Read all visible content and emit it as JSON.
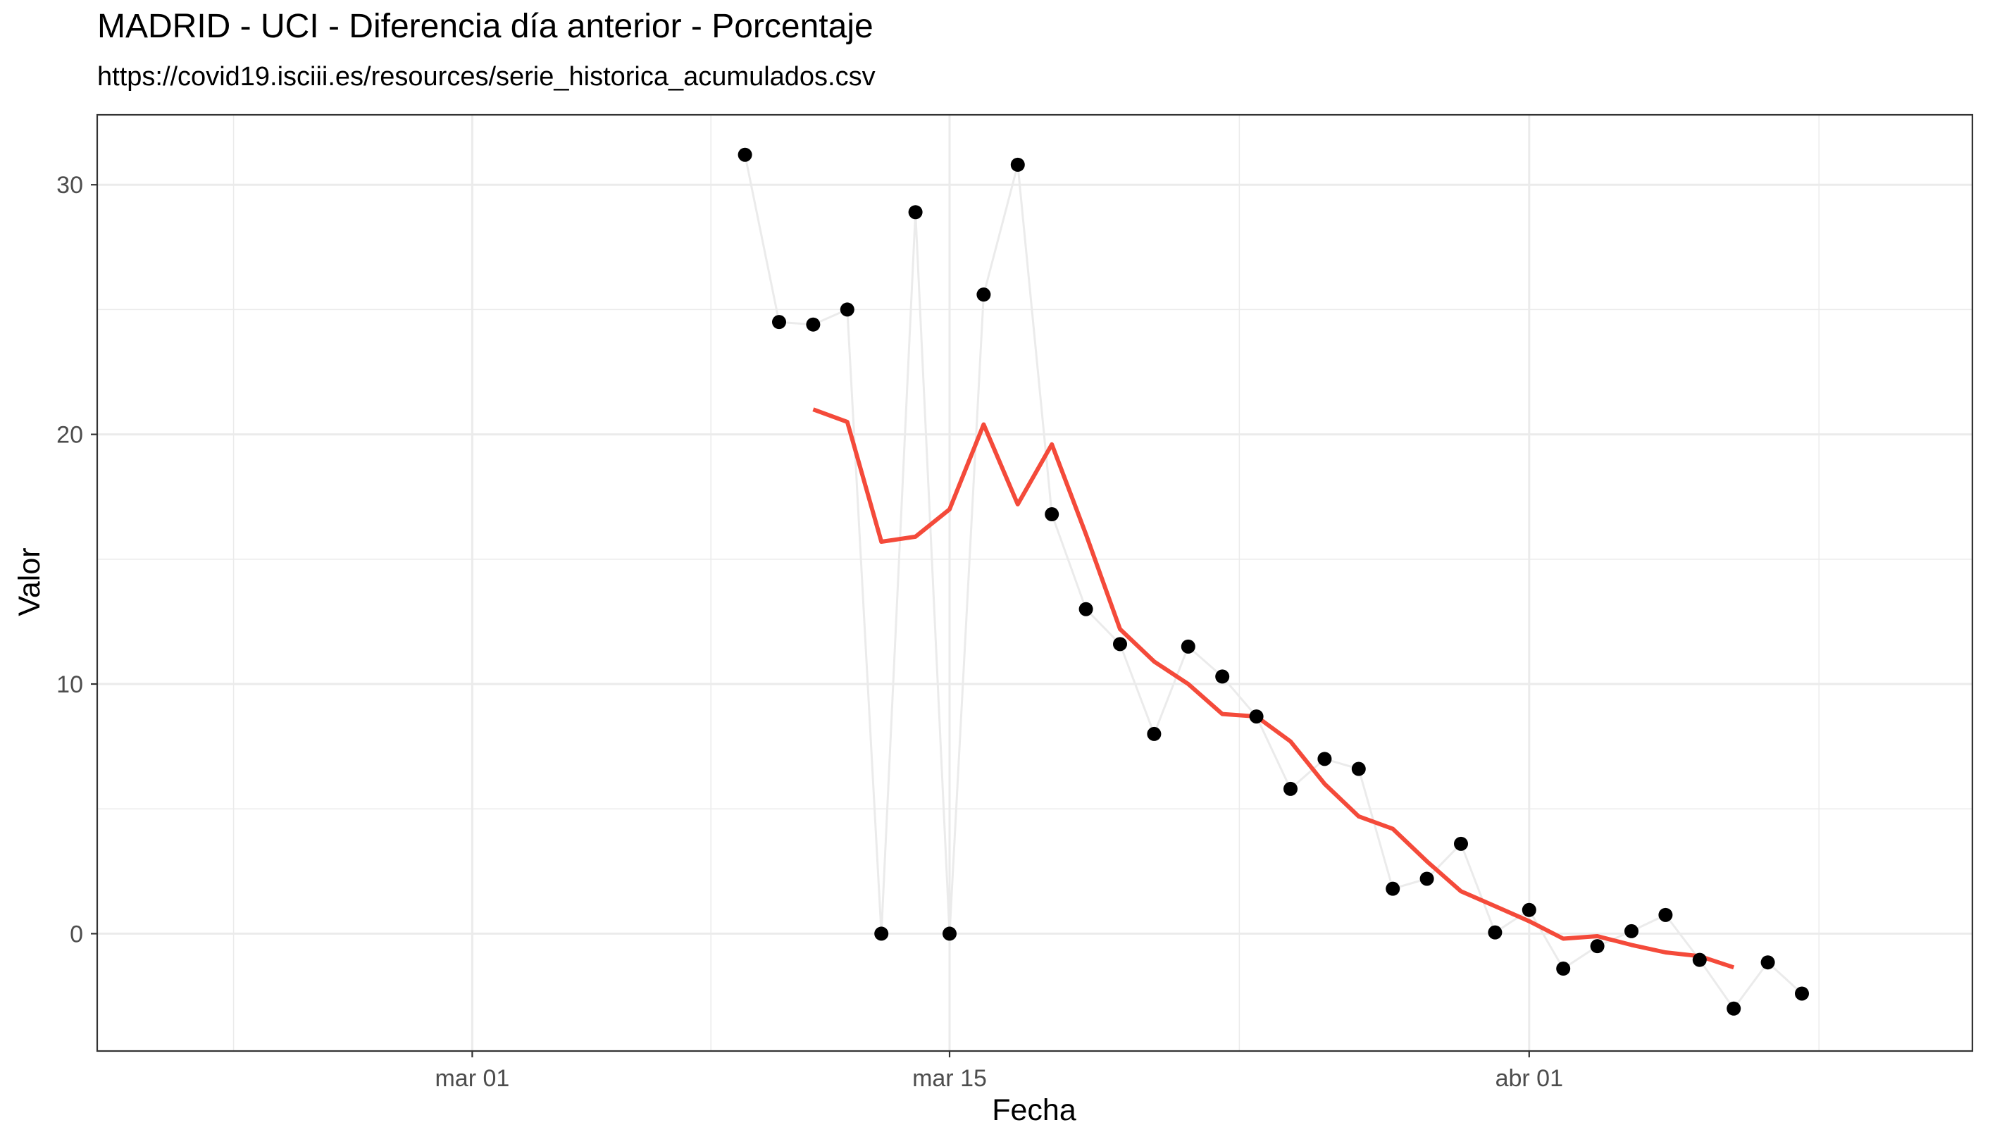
{
  "chart_data": {
    "type": "line",
    "title": "MADRID - UCI - Diferencia día anterior - Porcentaje",
    "subtitle": "https://covid19.isciii.es/resources/serie_historica_acumulados.csv",
    "xlabel": "Fecha",
    "ylabel": "Valor",
    "xlim": [
      "2020-02-19",
      "2020-04-14"
    ],
    "ylim": [
      -4.7,
      32.8
    ],
    "x_ticks": [
      {
        "date": "2020-03-01",
        "label": "mar 01"
      },
      {
        "date": "2020-03-15",
        "label": "mar 15"
      },
      {
        "date": "2020-04-01",
        "label": "abr 01"
      }
    ],
    "y_ticks": [
      0,
      10,
      20,
      30
    ],
    "grid": true,
    "series": [
      {
        "style": "points-with-line",
        "point_color": "#000000",
        "line_color": "#ebebeb",
        "data": [
          [
            "2020-03-09",
            31.2
          ],
          [
            "2020-03-10",
            24.5
          ],
          [
            "2020-03-11",
            24.4
          ],
          [
            "2020-03-12",
            25.0
          ],
          [
            "2020-03-13",
            0.0
          ],
          [
            "2020-03-14",
            28.9
          ],
          [
            "2020-03-15",
            0.0
          ],
          [
            "2020-03-16",
            25.6
          ],
          [
            "2020-03-17",
            30.8
          ],
          [
            "2020-03-18",
            16.8
          ],
          [
            "2020-03-19",
            13.0
          ],
          [
            "2020-03-20",
            11.6
          ],
          [
            "2020-03-21",
            8.0
          ],
          [
            "2020-03-22",
            11.5
          ],
          [
            "2020-03-23",
            10.3
          ],
          [
            "2020-03-24",
            8.7
          ],
          [
            "2020-03-25",
            5.8
          ],
          [
            "2020-03-26",
            7.0
          ],
          [
            "2020-03-27",
            6.6
          ],
          [
            "2020-03-28",
            1.8
          ],
          [
            "2020-03-29",
            2.2
          ],
          [
            "2020-03-30",
            3.6
          ],
          [
            "2020-03-31",
            0.05
          ],
          [
            "2020-04-01",
            0.95
          ],
          [
            "2020-04-02",
            -1.4
          ],
          [
            "2020-04-03",
            -0.5
          ],
          [
            "2020-04-04",
            0.1
          ],
          [
            "2020-04-05",
            0.75
          ],
          [
            "2020-04-06",
            -1.05
          ],
          [
            "2020-04-07",
            -3.0
          ],
          [
            "2020-04-08",
            -1.15
          ],
          [
            "2020-04-09",
            -2.4
          ]
        ]
      },
      {
        "style": "line",
        "color": "#f44a3a",
        "data": [
          [
            "2020-03-11",
            21.0
          ],
          [
            "2020-03-12",
            20.5
          ],
          [
            "2020-03-13",
            15.7
          ],
          [
            "2020-03-14",
            15.9
          ],
          [
            "2020-03-15",
            17.0
          ],
          [
            "2020-03-16",
            20.4
          ],
          [
            "2020-03-17",
            17.2
          ],
          [
            "2020-03-18",
            19.6
          ],
          [
            "2020-03-19",
            16.0
          ],
          [
            "2020-03-20",
            12.2
          ],
          [
            "2020-03-21",
            10.9
          ],
          [
            "2020-03-22",
            10.0
          ],
          [
            "2020-03-23",
            8.8
          ],
          [
            "2020-03-24",
            8.7
          ],
          [
            "2020-03-25",
            7.7
          ],
          [
            "2020-03-26",
            6.0
          ],
          [
            "2020-03-27",
            4.7
          ],
          [
            "2020-03-28",
            4.2
          ],
          [
            "2020-03-29",
            2.9
          ],
          [
            "2020-03-30",
            1.7
          ],
          [
            "2020-03-31",
            1.1
          ],
          [
            "2020-04-01",
            0.5
          ],
          [
            "2020-04-02",
            -0.2
          ],
          [
            "2020-04-03",
            -0.1
          ],
          [
            "2020-04-04",
            -0.45
          ],
          [
            "2020-04-05",
            -0.75
          ],
          [
            "2020-04-06",
            -0.9
          ],
          [
            "2020-04-07",
            -1.35
          ]
        ]
      }
    ]
  }
}
